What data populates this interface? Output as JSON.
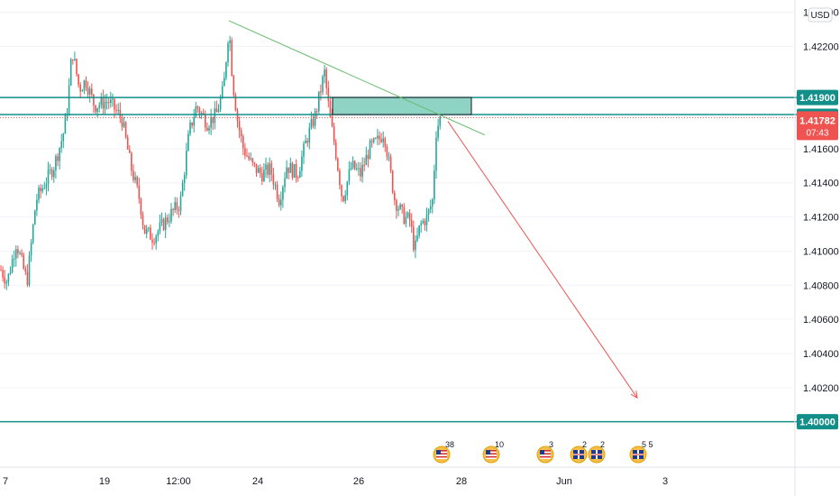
{
  "chart_data": {
    "type": "candlestick",
    "currency": "USD",
    "ylim": [
      1.3975,
      1.4245
    ],
    "y_ticks": [
      "1.42400",
      "1.42200",
      "1.41600",
      "1.41400",
      "1.41200",
      "1.41000",
      "1.40800",
      "1.40600",
      "1.40400",
      "1.40200"
    ],
    "x_ticks": [
      "7",
      "19",
      "12:00",
      "24",
      "26",
      "28",
      "Jun",
      "3"
    ],
    "price_levels": [
      {
        "name": "level-1-41900",
        "value": 1.419,
        "label": "1.41900",
        "color": "#138f8a"
      },
      {
        "name": "level-1-41800",
        "value": 1.418,
        "label": "1.41800",
        "color": "#138f8a"
      },
      {
        "name": "level-1-40000",
        "value": 1.4,
        "label": "1.40000",
        "color": "#138f8a"
      }
    ],
    "current_price": {
      "value": 1.41782,
      "label": "1.41782",
      "countdown": "07:43",
      "color": "#ef5350"
    },
    "supply_zone": {
      "y_top": 1.419,
      "y_bottom": 1.418,
      "color": "#8fd3c4"
    },
    "trendline": {
      "from": {
        "t": 254,
        "y": 1.4235
      },
      "to": {
        "t": 538,
        "y": 1.4168
      },
      "color": "#66bb6a"
    },
    "projection": {
      "from": {
        "t": 497,
        "y": 1.4176
      },
      "to": {
        "t": 707,
        "y": 1.4014
      },
      "color": "#ef5350"
    },
    "events": [
      {
        "flag": "us",
        "count": "38"
      },
      {
        "flag": "us",
        "count": "10"
      },
      {
        "flag": "us",
        "count": "3"
      },
      {
        "flag": "gb",
        "count": "2"
      },
      {
        "flag": "gb",
        "count": "2"
      },
      {
        "flag": "gb",
        "count": "5 5"
      }
    ],
    "colors": {
      "up": "#26a69a",
      "down": "#ef5350",
      "level": "#138f8a"
    },
    "price_path": [
      [
        0,
        1.409
      ],
      [
        8,
        1.4082
      ],
      [
        18,
        1.4105
      ],
      [
        30,
        1.4082
      ],
      [
        40,
        1.413
      ],
      [
        50,
        1.414
      ],
      [
        60,
        1.415
      ],
      [
        70,
        1.4168
      ],
      [
        75,
        1.4185
      ],
      [
        80,
        1.4218
      ],
      [
        88,
        1.4195
      ],
      [
        95,
        1.42
      ],
      [
        105,
        1.4185
      ],
      [
        120,
        1.4188
      ],
      [
        135,
        1.4178
      ],
      [
        145,
        1.415
      ],
      [
        155,
        1.413
      ],
      [
        160,
        1.4112
      ],
      [
        170,
        1.4108
      ],
      [
        180,
        1.4115
      ],
      [
        190,
        1.4122
      ],
      [
        200,
        1.4128
      ],
      [
        210,
        1.417
      ],
      [
        218,
        1.4185
      ],
      [
        230,
        1.4175
      ],
      [
        240,
        1.418
      ],
      [
        248,
        1.4195
      ],
      [
        254,
        1.4232
      ],
      [
        258,
        1.42
      ],
      [
        264,
        1.4175
      ],
      [
        270,
        1.416
      ],
      [
        280,
        1.415
      ],
      [
        290,
        1.4145
      ],
      [
        300,
        1.4148
      ],
      [
        310,
        1.413
      ],
      [
        318,
        1.415
      ],
      [
        330,
        1.4145
      ],
      [
        340,
        1.4165
      ],
      [
        350,
        1.418
      ],
      [
        360,
        1.4205
      ],
      [
        366,
        1.4178
      ],
      [
        372,
        1.416
      ],
      [
        380,
        1.413
      ],
      [
        390,
        1.415
      ],
      [
        400,
        1.4145
      ],
      [
        410,
        1.416
      ],
      [
        420,
        1.4165
      ],
      [
        426,
        1.417
      ],
      [
        432,
        1.415
      ],
      [
        438,
        1.413
      ],
      [
        448,
        1.412
      ],
      [
        455,
        1.4118
      ],
      [
        460,
        1.41
      ],
      [
        466,
        1.4115
      ],
      [
        474,
        1.412
      ],
      [
        480,
        1.413
      ],
      [
        484,
        1.417
      ],
      [
        488,
        1.4178
      ],
      [
        490,
        1.4175
      ]
    ]
  }
}
